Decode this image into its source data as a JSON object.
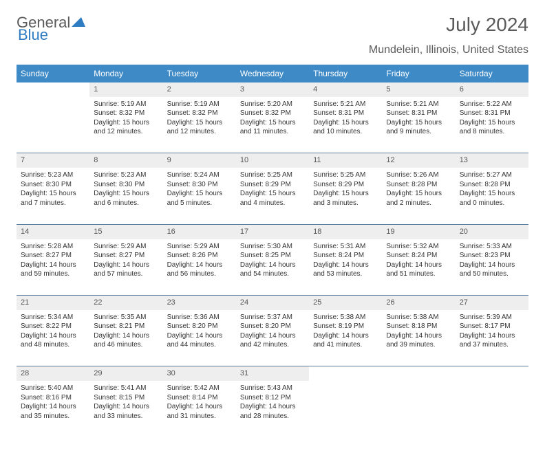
{
  "brand": {
    "word1": "General",
    "word2": "Blue"
  },
  "title": "July 2024",
  "location": "Mundelein, Illinois, United States",
  "colors": {
    "header_bg": "#3d8ac7",
    "header_text": "#ffffff",
    "daynum_bg": "#eeeeee",
    "border": "#5b7a99",
    "text": "#333333",
    "brand_gray": "#5a5a5a",
    "brand_blue": "#2e7cc2"
  },
  "weekdays": [
    "Sunday",
    "Monday",
    "Tuesday",
    "Wednesday",
    "Thursday",
    "Friday",
    "Saturday"
  ],
  "weeks": [
    {
      "nums": [
        "",
        "1",
        "2",
        "3",
        "4",
        "5",
        "6"
      ],
      "cells": [
        null,
        {
          "sunrise": "Sunrise: 5:19 AM",
          "sunset": "Sunset: 8:32 PM",
          "daylight": "Daylight: 15 hours and 12 minutes."
        },
        {
          "sunrise": "Sunrise: 5:19 AM",
          "sunset": "Sunset: 8:32 PM",
          "daylight": "Daylight: 15 hours and 12 minutes."
        },
        {
          "sunrise": "Sunrise: 5:20 AM",
          "sunset": "Sunset: 8:32 PM",
          "daylight": "Daylight: 15 hours and 11 minutes."
        },
        {
          "sunrise": "Sunrise: 5:21 AM",
          "sunset": "Sunset: 8:31 PM",
          "daylight": "Daylight: 15 hours and 10 minutes."
        },
        {
          "sunrise": "Sunrise: 5:21 AM",
          "sunset": "Sunset: 8:31 PM",
          "daylight": "Daylight: 15 hours and 9 minutes."
        },
        {
          "sunrise": "Sunrise: 5:22 AM",
          "sunset": "Sunset: 8:31 PM",
          "daylight": "Daylight: 15 hours and 8 minutes."
        }
      ]
    },
    {
      "nums": [
        "7",
        "8",
        "9",
        "10",
        "11",
        "12",
        "13"
      ],
      "cells": [
        {
          "sunrise": "Sunrise: 5:23 AM",
          "sunset": "Sunset: 8:30 PM",
          "daylight": "Daylight: 15 hours and 7 minutes."
        },
        {
          "sunrise": "Sunrise: 5:23 AM",
          "sunset": "Sunset: 8:30 PM",
          "daylight": "Daylight: 15 hours and 6 minutes."
        },
        {
          "sunrise": "Sunrise: 5:24 AM",
          "sunset": "Sunset: 8:30 PM",
          "daylight": "Daylight: 15 hours and 5 minutes."
        },
        {
          "sunrise": "Sunrise: 5:25 AM",
          "sunset": "Sunset: 8:29 PM",
          "daylight": "Daylight: 15 hours and 4 minutes."
        },
        {
          "sunrise": "Sunrise: 5:25 AM",
          "sunset": "Sunset: 8:29 PM",
          "daylight": "Daylight: 15 hours and 3 minutes."
        },
        {
          "sunrise": "Sunrise: 5:26 AM",
          "sunset": "Sunset: 8:28 PM",
          "daylight": "Daylight: 15 hours and 2 minutes."
        },
        {
          "sunrise": "Sunrise: 5:27 AM",
          "sunset": "Sunset: 8:28 PM",
          "daylight": "Daylight: 15 hours and 0 minutes."
        }
      ]
    },
    {
      "nums": [
        "14",
        "15",
        "16",
        "17",
        "18",
        "19",
        "20"
      ],
      "cells": [
        {
          "sunrise": "Sunrise: 5:28 AM",
          "sunset": "Sunset: 8:27 PM",
          "daylight": "Daylight: 14 hours and 59 minutes."
        },
        {
          "sunrise": "Sunrise: 5:29 AM",
          "sunset": "Sunset: 8:27 PM",
          "daylight": "Daylight: 14 hours and 57 minutes."
        },
        {
          "sunrise": "Sunrise: 5:29 AM",
          "sunset": "Sunset: 8:26 PM",
          "daylight": "Daylight: 14 hours and 56 minutes."
        },
        {
          "sunrise": "Sunrise: 5:30 AM",
          "sunset": "Sunset: 8:25 PM",
          "daylight": "Daylight: 14 hours and 54 minutes."
        },
        {
          "sunrise": "Sunrise: 5:31 AM",
          "sunset": "Sunset: 8:24 PM",
          "daylight": "Daylight: 14 hours and 53 minutes."
        },
        {
          "sunrise": "Sunrise: 5:32 AM",
          "sunset": "Sunset: 8:24 PM",
          "daylight": "Daylight: 14 hours and 51 minutes."
        },
        {
          "sunrise": "Sunrise: 5:33 AM",
          "sunset": "Sunset: 8:23 PM",
          "daylight": "Daylight: 14 hours and 50 minutes."
        }
      ]
    },
    {
      "nums": [
        "21",
        "22",
        "23",
        "24",
        "25",
        "26",
        "27"
      ],
      "cells": [
        {
          "sunrise": "Sunrise: 5:34 AM",
          "sunset": "Sunset: 8:22 PM",
          "daylight": "Daylight: 14 hours and 48 minutes."
        },
        {
          "sunrise": "Sunrise: 5:35 AM",
          "sunset": "Sunset: 8:21 PM",
          "daylight": "Daylight: 14 hours and 46 minutes."
        },
        {
          "sunrise": "Sunrise: 5:36 AM",
          "sunset": "Sunset: 8:20 PM",
          "daylight": "Daylight: 14 hours and 44 minutes."
        },
        {
          "sunrise": "Sunrise: 5:37 AM",
          "sunset": "Sunset: 8:20 PM",
          "daylight": "Daylight: 14 hours and 42 minutes."
        },
        {
          "sunrise": "Sunrise: 5:38 AM",
          "sunset": "Sunset: 8:19 PM",
          "daylight": "Daylight: 14 hours and 41 minutes."
        },
        {
          "sunrise": "Sunrise: 5:38 AM",
          "sunset": "Sunset: 8:18 PM",
          "daylight": "Daylight: 14 hours and 39 minutes."
        },
        {
          "sunrise": "Sunrise: 5:39 AM",
          "sunset": "Sunset: 8:17 PM",
          "daylight": "Daylight: 14 hours and 37 minutes."
        }
      ]
    },
    {
      "nums": [
        "28",
        "29",
        "30",
        "31",
        "",
        "",
        ""
      ],
      "cells": [
        {
          "sunrise": "Sunrise: 5:40 AM",
          "sunset": "Sunset: 8:16 PM",
          "daylight": "Daylight: 14 hours and 35 minutes."
        },
        {
          "sunrise": "Sunrise: 5:41 AM",
          "sunset": "Sunset: 8:15 PM",
          "daylight": "Daylight: 14 hours and 33 minutes."
        },
        {
          "sunrise": "Sunrise: 5:42 AM",
          "sunset": "Sunset: 8:14 PM",
          "daylight": "Daylight: 14 hours and 31 minutes."
        },
        {
          "sunrise": "Sunrise: 5:43 AM",
          "sunset": "Sunset: 8:12 PM",
          "daylight": "Daylight: 14 hours and 28 minutes."
        },
        null,
        null,
        null
      ]
    }
  ]
}
